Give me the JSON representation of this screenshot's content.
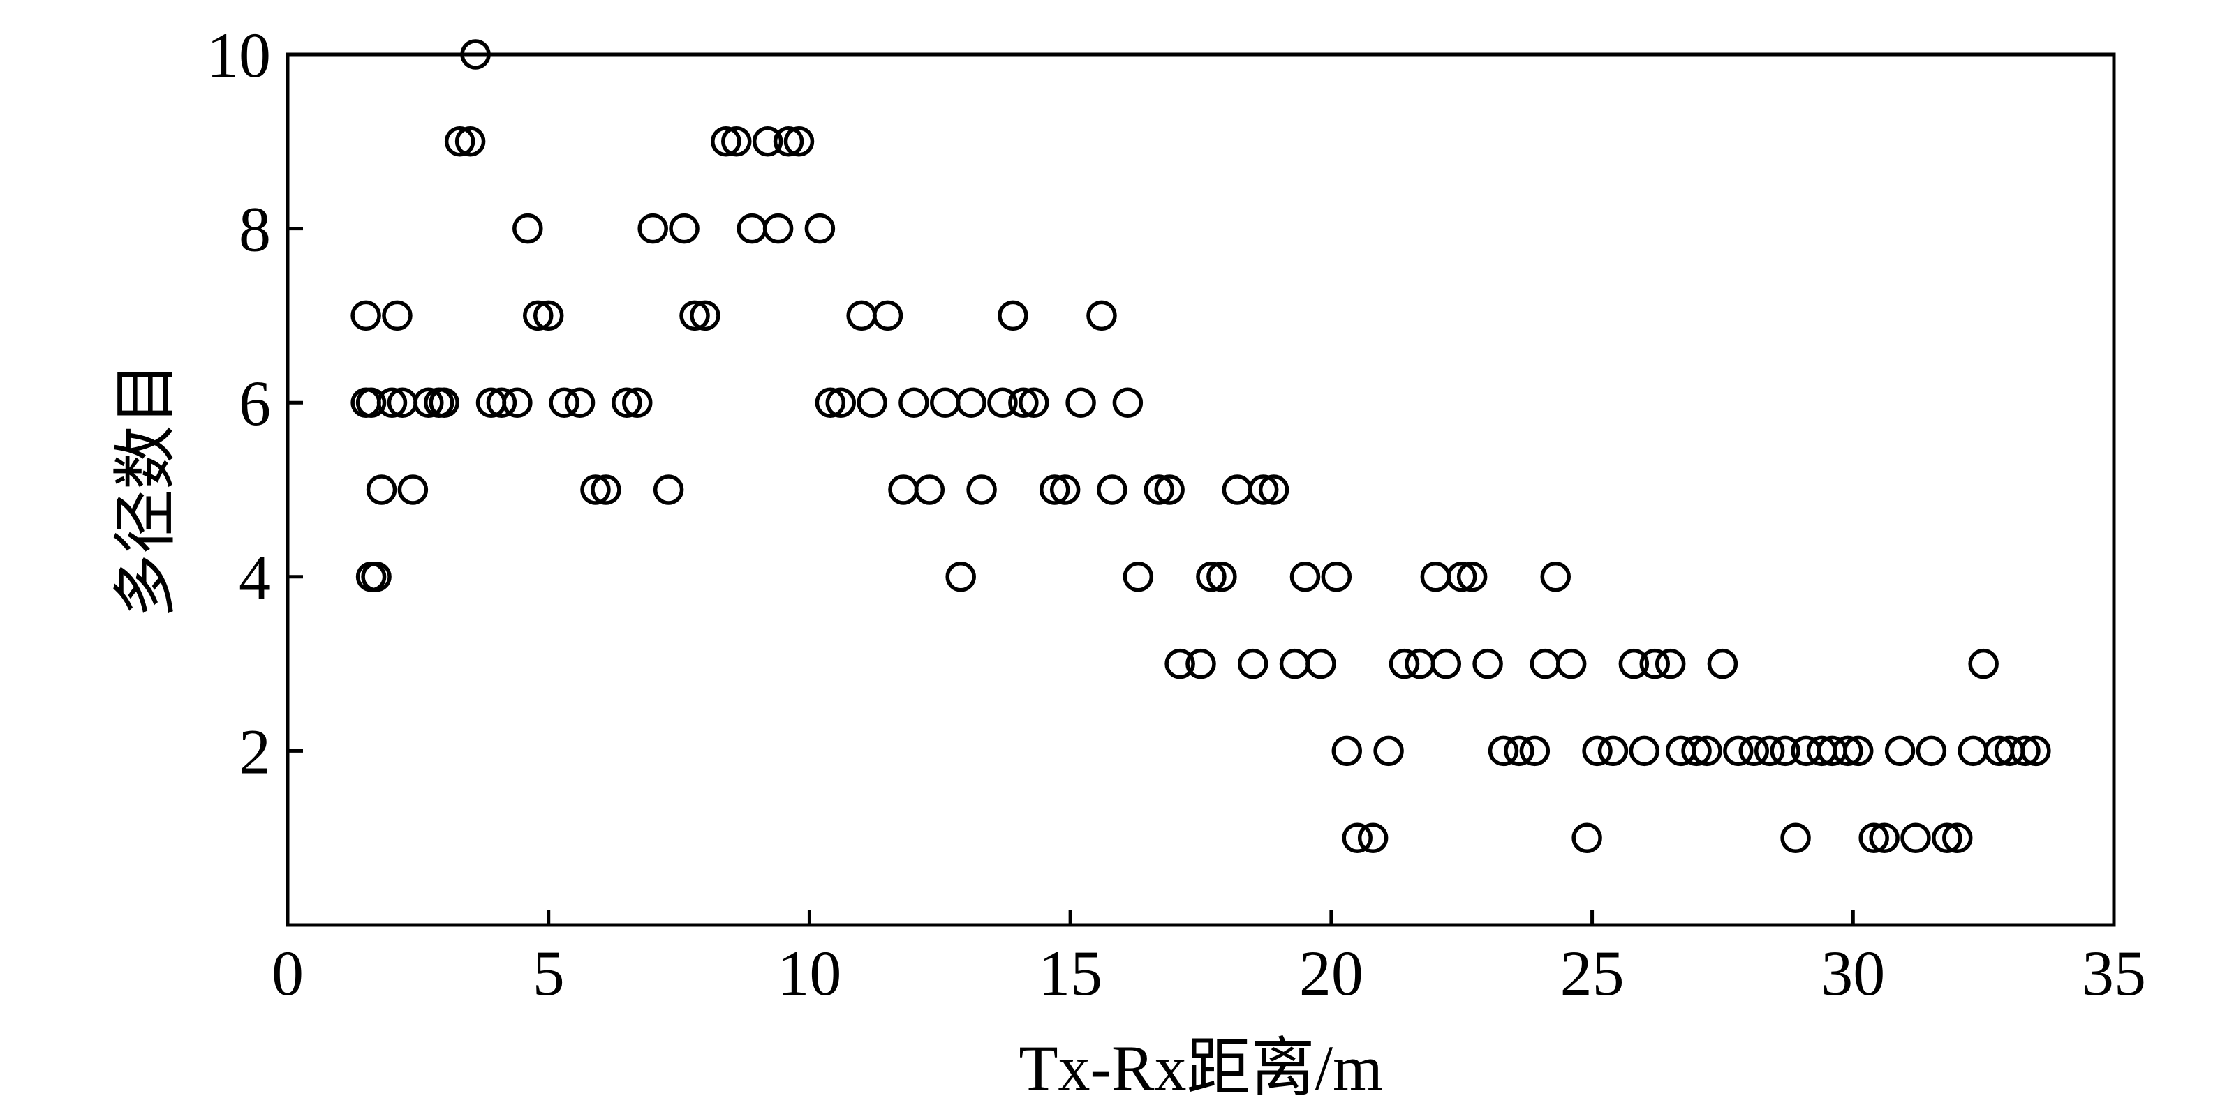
{
  "chart_data": {
    "type": "scatter",
    "xlabel": "Tx-Rx距离/m",
    "ylabel": "多径数目",
    "xlim": [
      0,
      35
    ],
    "ylim": [
      0,
      10
    ],
    "xticks": [
      0,
      5,
      10,
      15,
      20,
      25,
      30,
      35
    ],
    "yticks": [
      2,
      4,
      6,
      8,
      10
    ],
    "xtick_labels": [
      "0",
      "5",
      "10",
      "15",
      "20",
      "25",
      "30",
      "35"
    ],
    "ytick_labels": [
      "2",
      "4",
      "6",
      "8",
      "10"
    ],
    "grid": false,
    "marker": "open-circle",
    "points": [
      [
        1.5,
        7
      ],
      [
        1.5,
        6
      ],
      [
        1.6,
        6
      ],
      [
        1.6,
        4
      ],
      [
        1.7,
        4
      ],
      [
        1.8,
        5
      ],
      [
        2.0,
        6
      ],
      [
        2.1,
        7
      ],
      [
        2.2,
        6
      ],
      [
        2.4,
        5
      ],
      [
        2.7,
        6
      ],
      [
        2.9,
        6
      ],
      [
        3.0,
        6
      ],
      [
        3.3,
        9
      ],
      [
        3.5,
        9
      ],
      [
        3.6,
        10
      ],
      [
        3.9,
        6
      ],
      [
        4.1,
        6
      ],
      [
        4.4,
        6
      ],
      [
        4.6,
        8
      ],
      [
        4.8,
        7
      ],
      [
        5.0,
        7
      ],
      [
        5.3,
        6
      ],
      [
        5.6,
        6
      ],
      [
        5.9,
        5
      ],
      [
        6.1,
        5
      ],
      [
        6.5,
        6
      ],
      [
        6.7,
        6
      ],
      [
        7.0,
        8
      ],
      [
        7.3,
        5
      ],
      [
        7.6,
        8
      ],
      [
        7.8,
        7
      ],
      [
        8.0,
        7
      ],
      [
        8.4,
        9
      ],
      [
        8.6,
        9
      ],
      [
        8.9,
        8
      ],
      [
        9.2,
        9
      ],
      [
        9.4,
        8
      ],
      [
        9.6,
        9
      ],
      [
        9.8,
        9
      ],
      [
        10.2,
        8
      ],
      [
        10.4,
        6
      ],
      [
        10.6,
        6
      ],
      [
        11.0,
        7
      ],
      [
        11.2,
        6
      ],
      [
        11.5,
        7
      ],
      [
        11.8,
        5
      ],
      [
        12.0,
        6
      ],
      [
        12.3,
        5
      ],
      [
        12.6,
        6
      ],
      [
        12.9,
        4
      ],
      [
        13.1,
        6
      ],
      [
        13.3,
        5
      ],
      [
        13.7,
        6
      ],
      [
        13.9,
        7
      ],
      [
        14.1,
        6
      ],
      [
        14.3,
        6
      ],
      [
        14.7,
        5
      ],
      [
        14.9,
        5
      ],
      [
        15.2,
        6
      ],
      [
        15.6,
        7
      ],
      [
        15.8,
        5
      ],
      [
        16.1,
        6
      ],
      [
        16.3,
        4
      ],
      [
        16.7,
        5
      ],
      [
        16.9,
        5
      ],
      [
        17.1,
        3
      ],
      [
        17.5,
        3
      ],
      [
        17.7,
        4
      ],
      [
        17.9,
        4
      ],
      [
        18.2,
        5
      ],
      [
        18.5,
        3
      ],
      [
        18.7,
        5
      ],
      [
        18.9,
        5
      ],
      [
        19.3,
        3
      ],
      [
        19.5,
        4
      ],
      [
        19.8,
        3
      ],
      [
        20.1,
        4
      ],
      [
        20.3,
        2
      ],
      [
        20.5,
        1
      ],
      [
        20.8,
        1
      ],
      [
        21.1,
        2
      ],
      [
        21.4,
        3
      ],
      [
        21.7,
        3
      ],
      [
        22.0,
        4
      ],
      [
        22.2,
        3
      ],
      [
        22.5,
        4
      ],
      [
        22.7,
        4
      ],
      [
        23.0,
        3
      ],
      [
        23.3,
        2
      ],
      [
        23.6,
        2
      ],
      [
        23.9,
        2
      ],
      [
        24.1,
        3
      ],
      [
        24.3,
        4
      ],
      [
        24.6,
        3
      ],
      [
        24.9,
        1
      ],
      [
        25.1,
        2
      ],
      [
        25.4,
        2
      ],
      [
        25.8,
        3
      ],
      [
        26.0,
        2
      ],
      [
        26.2,
        3
      ],
      [
        26.5,
        3
      ],
      [
        26.7,
        2
      ],
      [
        27.0,
        2
      ],
      [
        27.2,
        2
      ],
      [
        27.5,
        3
      ],
      [
        27.8,
        2
      ],
      [
        28.1,
        2
      ],
      [
        28.4,
        2
      ],
      [
        28.7,
        2
      ],
      [
        28.9,
        1
      ],
      [
        29.1,
        2
      ],
      [
        29.4,
        2
      ],
      [
        29.6,
        2
      ],
      [
        29.9,
        2
      ],
      [
        30.1,
        2
      ],
      [
        30.4,
        1
      ],
      [
        30.6,
        1
      ],
      [
        30.9,
        2
      ],
      [
        31.2,
        1
      ],
      [
        31.5,
        2
      ],
      [
        31.8,
        1
      ],
      [
        32.0,
        1
      ],
      [
        32.3,
        2
      ],
      [
        32.5,
        3
      ],
      [
        32.8,
        2
      ],
      [
        33.0,
        2
      ],
      [
        33.3,
        2
      ],
      [
        33.5,
        2
      ]
    ]
  }
}
